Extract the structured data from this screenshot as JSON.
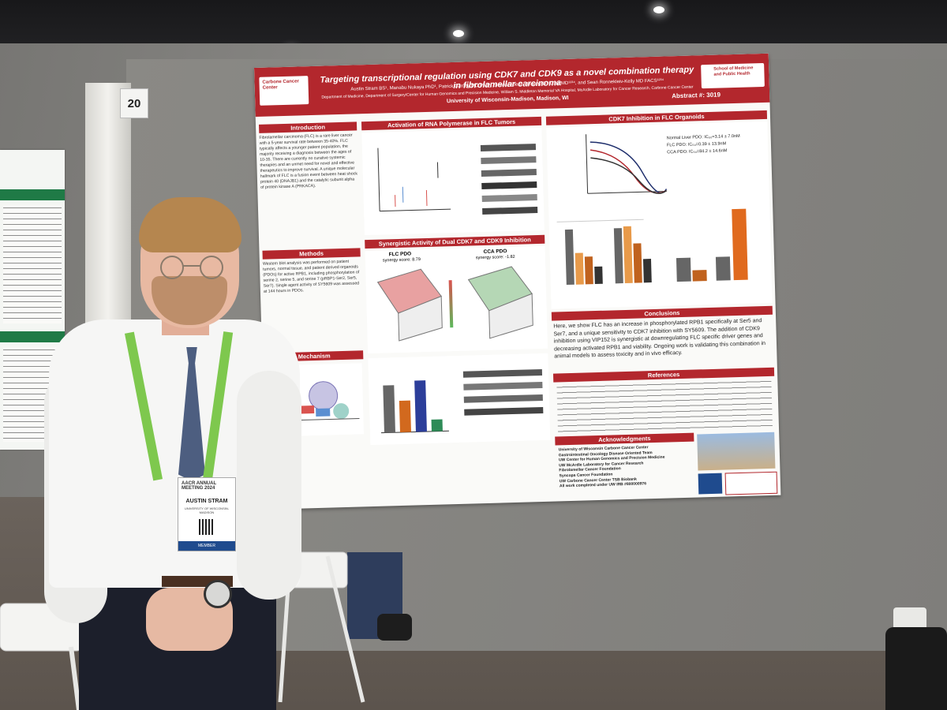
{
  "booth": {
    "number": "20"
  },
  "poster": {
    "title": "Targeting transcriptional regulation using CDK7 and CDK9 as a novel combination therapy in fibrolamellar carcinoma",
    "authors": "Austin Stram BS¹, Manabu Nukaya PhD¹, Patrick Carney MD PhD¹, Eleanor Riedl¹, Jeremy D. Kratz MD¹²³⁴, and Sean Ronnekleiv-Kelly MD FACS¹²³⁴",
    "affiliation": "Department of Medicine, Department of Surgery/Center for Human Genomics and Precision Medicine, William S. Middleton Memorial VA Hospital, McArdle Laboratory for Cancer Research, Carbone Cancer Center",
    "university": "University of Wisconsin-Madison, Madison, WI",
    "abstract_number": "Abstract #: 3019",
    "logo_left": "Carbone Cancer Center",
    "logo_right": "School of Medicine and Public Health",
    "sections": {
      "introduction": "Introduction",
      "activation": "Activation of RNA Polymerase in FLC Tumors",
      "cdk7": "CDK7 Inhibition in FLC Organoids",
      "methods": "Methods",
      "synergy": "Synergistic Activity of Dual CDK7 and CDK9 Inhibition",
      "conclusions": "Conclusions",
      "mechanism": "Mechanism",
      "references": "References",
      "acknowledgments": "Acknowledgments"
    },
    "synergy_labels": {
      "flc": "FLC PDO",
      "flc_score": "synergy score: 8.79",
      "cca": "CCA PDO",
      "cca_score": "synergy score: -1.82"
    },
    "legend": {
      "normal": "Normal Liver PDO: IC₅₀=3.14 ± 7.0nM",
      "flc": "FLC PDO: IC₅₀=0.39 ± 13.9nM",
      "cca": "CCA PDO: IC₅₀=84.2 ± 14.6nM"
    },
    "conclusions_text": "Here, we show FLC has an increase in phosphorylated RPB1 specifically at Ser5 and Ser7, and a unique sensitivity to CDK7 inhibition with SY5609. The addition of CDK9 inhibition using VIP152 is synergistic at downregulating FLC specific driver genes and decreasing activated RPB1 and viability. Ongoing work is validating this combination in animal models to assess toxicity and in vivo efficacy.",
    "intro_text": "Fibrolamellar carcinoma (FLC) is a rare liver cancer with a 5-year survival rate between 35-40%. FLC typically affects a younger patient population, the majority receiving a diagnosis between the ages of 10-35. There are currently no curative systemic therapies and an unmet need for novel and effective therapeutics to improve survival. A unique molecular hallmark of FLC is a fusion event between heat shock protein 40 (DNAJB1) and the catalytic subunit alpha of protein kinase A (PRKACA).",
    "methods_text": "Western blot analysis was performed on patient tumors, normal tissue, and patient derived organoids (PDOs) for active RPB1, including phosphorylation of serine 2, serine 5, and serine 7 (pRBP1-Ser2, Ser5, Ser7). Single agent activity of SY5609 was assessed at 144 hours in PDOs.",
    "ack_lines": [
      "University of Wisconsin Carbone Cancer Center",
      "Gastrointestinal Oncology Disease Oriented Team",
      "UW Center for Human Genomics and Precision Medicine",
      "UW McArdle Laboratory for Cancer Research",
      "Fibrolamellar Cancer Foundation",
      "Syncopa Cancer Foundation",
      "UW Carbone Cancer Center TSB Biobank",
      "All work completed under UW IRB #800000976"
    ]
  },
  "badge": {
    "event": "AACR ANNUAL MEETING 2024",
    "name": "AUSTIN STRAM",
    "affiliation": "UNIVERSITY OF WISCONSIN-MADISON",
    "role": "MEMBER"
  },
  "colors": {
    "poster_red": "#b3272d",
    "lanyard": "#7ec84e",
    "tie": "#4d5e80"
  }
}
